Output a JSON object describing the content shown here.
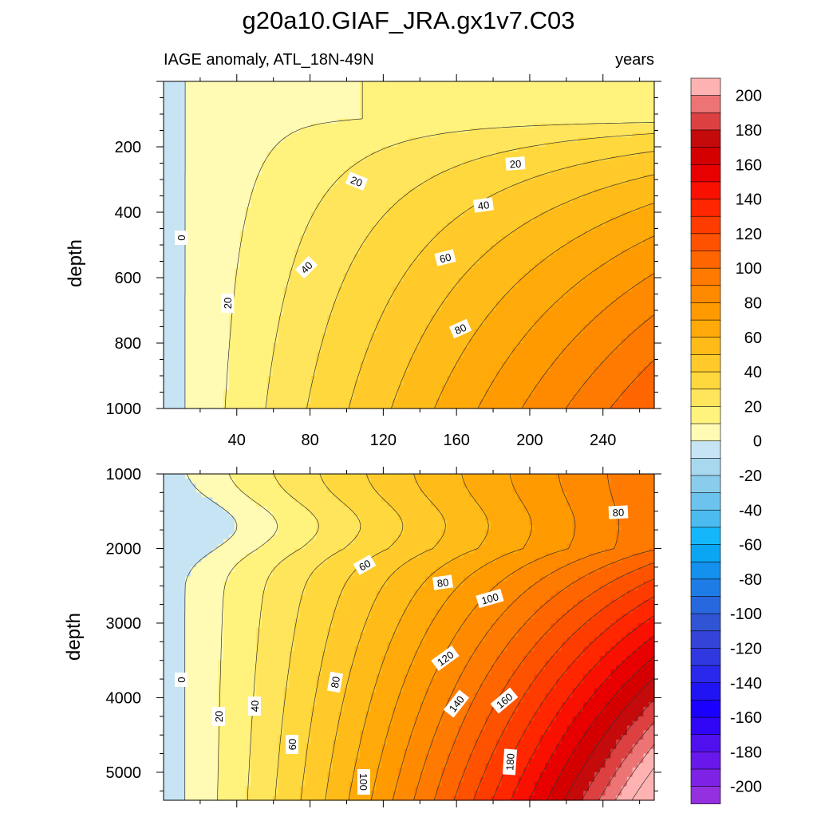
{
  "chart_data": {
    "type": "heatmap",
    "title": "g20a10.GIAF_JRA.gx1v7.C03",
    "subtitle_left": "IAGE anomaly, ATL_18N-49N",
    "subtitle_right": "years",
    "xlabel": "",
    "x_ticks": [
      "40",
      "80",
      "120",
      "160",
      "200",
      "240"
    ],
    "x_range": [
      0,
      268
    ],
    "panels": [
      {
        "name": "upper",
        "ylabel": "depth",
        "y_range": [
          0,
          1000
        ],
        "y_ticks": [
          "200",
          "400",
          "600",
          "800",
          "1000"
        ],
        "contour_labels": [
          "0",
          "20",
          "20",
          "20",
          "40",
          "40",
          "60",
          "80"
        ]
      },
      {
        "name": "lower",
        "ylabel": "depth",
        "y_range": [
          1000,
          5375
        ],
        "y_ticks": [
          "1000",
          "2000",
          "3000",
          "4000",
          "5000"
        ],
        "contour_labels": [
          "0",
          "20",
          "40",
          "60",
          "60",
          "80",
          "80",
          "80",
          "100",
          "100",
          "120",
          "140",
          "160",
          "180"
        ]
      }
    ],
    "colorbar": {
      "min": -210,
      "max": 210,
      "step": 10,
      "labels": [
        "200",
        "180",
        "160",
        "140",
        "120",
        "100",
        "80",
        "60",
        "40",
        "20",
        "0",
        "-20",
        "-40",
        "-60",
        "-80",
        "-100",
        "-120",
        "-140",
        "-160",
        "-180",
        "-200"
      ],
      "warm_colors": [
        "#FFFAB4",
        "#FFF27D",
        "#FFE55C",
        "#FFD83D",
        "#FFCA2A",
        "#FFBB18",
        "#FFAA08",
        "#FF9A00",
        "#FF8A00",
        "#FF7A00",
        "#FF6600",
        "#FF5200",
        "#FF3C00",
        "#FF2600",
        "#FA1000",
        "#E80000",
        "#D40000",
        "#C40A0A",
        "#DC4040",
        "#EC7474",
        "#FFB2B2"
      ],
      "cool_colors": [
        "#C6E4F4",
        "#A8D8EE",
        "#8ACCEC",
        "#6CC3EE",
        "#4CBCF0",
        "#14B8FA",
        "#0AA6F4",
        "#1490EE",
        "#1E7CE6",
        "#2868DE",
        "#3054D4",
        "#3444D8",
        "#3038E0",
        "#2A28EC",
        "#2014F4",
        "#1A00FF",
        "#3006F4",
        "#5010EE",
        "#6818EA",
        "#7E22E6",
        "#9430E0"
      ]
    }
  }
}
